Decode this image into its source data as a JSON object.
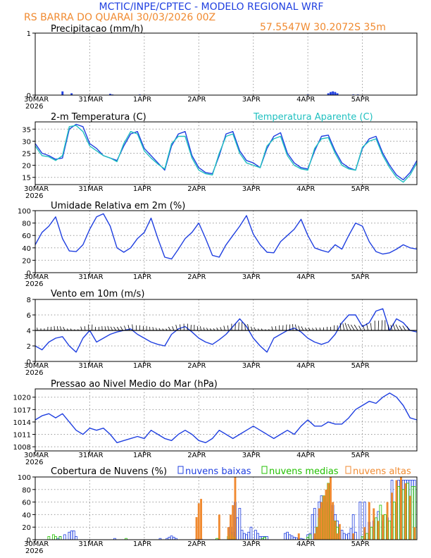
{
  "header": {
    "title": "MCTIC/INPE/CPTEC - MODELO REGIONAL WRF",
    "location": "RS BARRA DO QUARAI    30/03/2026 00Z",
    "coords": "57.5547W 30.2072S 35m"
  },
  "colors": {
    "blue": "#1f3fe0",
    "cyan": "#20c0c0",
    "orange": "#f08a30",
    "green": "#22c000",
    "black": "#000000"
  },
  "x_axis": {
    "labels": [
      "30MAR",
      "31MAR",
      "1APR",
      "2APR",
      "3APR",
      "4APR",
      "5APR"
    ],
    "year": "2026"
  },
  "chart_data": [
    {
      "id": "precip",
      "type": "bar",
      "title": "Precipitacao (mm/h)",
      "ylim": [
        0,
        1
      ],
      "yticks": [
        0,
        1
      ],
      "x_unit": "hours since 30/03/2026 00Z",
      "xlim": [
        0,
        168
      ],
      "series": [
        {
          "name": "Precipitacao",
          "color": "blue",
          "x": [
            12,
            16,
            33,
            34,
            46,
            120,
            129,
            130,
            131,
            132,
            133,
            140,
            142
          ],
          "values": [
            0.06,
            0.03,
            0.02,
            0.01,
            0.01,
            0.01,
            0.03,
            0.05,
            0.06,
            0.05,
            0.03,
            0.01,
            0.01
          ]
        }
      ]
    },
    {
      "id": "temp",
      "type": "line",
      "title": "2-m Temperatura (C)",
      "legend": "Temperatura Aparente (C)",
      "ylim": [
        12,
        38
      ],
      "yticks": [
        15,
        20,
        25,
        30,
        35
      ],
      "xlim": [
        0,
        168
      ],
      "series": [
        {
          "name": "Temperatura (C)",
          "color": "blue",
          "x": [
            0,
            3,
            6,
            9,
            12,
            15,
            18,
            21,
            24,
            27,
            30,
            33,
            36,
            39,
            42,
            45,
            48,
            51,
            54,
            57,
            60,
            63,
            66,
            69,
            72,
            75,
            78,
            81,
            84,
            87,
            90,
            93,
            96,
            99,
            102,
            105,
            108,
            111,
            114,
            117,
            120,
            123,
            126,
            129,
            132,
            135,
            138,
            141,
            144,
            147,
            150,
            153,
            156,
            159,
            162,
            165,
            168
          ],
          "values": [
            29,
            25,
            24,
            22.5,
            23,
            35,
            37,
            36,
            29,
            27,
            24,
            23,
            22,
            28,
            33,
            34,
            27,
            24,
            21,
            18,
            28,
            33,
            34,
            24,
            19,
            17,
            16.5,
            24,
            33,
            34,
            26,
            22,
            21,
            19,
            27,
            32,
            33.5,
            25,
            21,
            19,
            18.5,
            26,
            32,
            32.5,
            26,
            21,
            19,
            18,
            27,
            31,
            32,
            25,
            20,
            16,
            14,
            17,
            22
          ]
        },
        {
          "name": "Temperatura Aparente (C)",
          "color": "cyan",
          "x": [
            0,
            3,
            6,
            9,
            12,
            15,
            18,
            21,
            24,
            27,
            30,
            33,
            36,
            39,
            42,
            45,
            48,
            51,
            54,
            57,
            60,
            63,
            66,
            69,
            72,
            75,
            78,
            81,
            84,
            87,
            90,
            93,
            96,
            99,
            102,
            105,
            108,
            111,
            114,
            117,
            120,
            123,
            126,
            129,
            132,
            135,
            138,
            141,
            144,
            147,
            150,
            153,
            156,
            159,
            162,
            165,
            168
          ],
          "values": [
            28,
            24,
            23.5,
            22,
            24,
            36,
            36.5,
            34,
            28,
            26,
            24,
            23,
            21.5,
            29,
            34,
            33,
            26,
            23,
            20.5,
            18.5,
            29,
            32,
            32,
            23,
            18,
            16.5,
            16,
            25,
            32,
            33,
            25,
            21,
            20,
            19,
            28,
            31,
            32,
            24,
            20,
            18.5,
            18,
            27,
            31,
            31.5,
            25,
            20,
            18.5,
            18,
            27.5,
            30,
            31,
            24,
            19,
            15,
            13,
            16,
            21
          ]
        }
      ]
    },
    {
      "id": "rh",
      "type": "line",
      "title": "Umidade Relativa em 2m (%)",
      "ylim": [
        0,
        100
      ],
      "yticks": [
        0,
        20,
        40,
        60,
        80,
        100
      ],
      "xlim": [
        0,
        168
      ],
      "series": [
        {
          "name": "Umidade Relativa",
          "color": "blue",
          "x": [
            0,
            3,
            6,
            9,
            12,
            15,
            18,
            21,
            24,
            27,
            30,
            33,
            36,
            39,
            42,
            45,
            48,
            51,
            54,
            57,
            60,
            63,
            66,
            69,
            72,
            75,
            78,
            81,
            84,
            87,
            90,
            93,
            96,
            99,
            102,
            105,
            108,
            111,
            114,
            117,
            120,
            123,
            126,
            129,
            132,
            135,
            138,
            141,
            144,
            147,
            150,
            153,
            156,
            159,
            162,
            165,
            168
          ],
          "values": [
            45,
            65,
            75,
            90,
            55,
            35,
            34,
            45,
            70,
            90,
            95,
            75,
            40,
            33,
            40,
            55,
            65,
            88,
            55,
            25,
            22,
            38,
            55,
            65,
            80,
            55,
            28,
            25,
            45,
            60,
            75,
            92,
            62,
            45,
            33,
            32,
            50,
            60,
            70,
            86,
            60,
            40,
            36,
            33,
            45,
            38,
            60,
            80,
            75,
            50,
            34,
            30,
            32,
            38,
            45,
            40,
            38
          ]
        }
      ]
    },
    {
      "id": "wind",
      "type": "line",
      "title": "Vento em 10m (m/s)",
      "ylim": [
        0,
        8
      ],
      "yticks": [
        0,
        2,
        4,
        6,
        8
      ],
      "xlim": [
        0,
        168
      ],
      "series": [
        {
          "name": "Vento",
          "color": "blue",
          "x": [
            0,
            3,
            6,
            9,
            12,
            15,
            18,
            21,
            24,
            27,
            30,
            33,
            36,
            39,
            42,
            45,
            48,
            51,
            54,
            57,
            60,
            63,
            66,
            69,
            72,
            75,
            78,
            81,
            84,
            87,
            90,
            93,
            96,
            99,
            102,
            105,
            108,
            111,
            114,
            117,
            120,
            123,
            126,
            129,
            132,
            135,
            138,
            141,
            144,
            147,
            150,
            153,
            156,
            159,
            162,
            165,
            168
          ],
          "values": [
            2,
            1.5,
            2.5,
            3,
            3.2,
            2,
            1.2,
            3,
            4,
            2.5,
            3,
            3.5,
            3.8,
            4,
            4.2,
            3.5,
            3,
            2.5,
            2.2,
            2,
            3.5,
            4.2,
            4.5,
            3.8,
            3,
            2.5,
            2.2,
            2.8,
            3.5,
            4.5,
            5.5,
            4.5,
            3,
            2,
            1.2,
            3,
            3.5,
            4,
            4.3,
            3.8,
            3,
            2.5,
            2.2,
            2.5,
            3.5,
            5,
            6,
            6,
            4.5,
            5,
            6.5,
            6.8,
            4,
            5.5,
            5,
            4,
            3.8
          ]
        }
      ]
    },
    {
      "id": "pres",
      "type": "line",
      "title": "Pressao ao Nivel Medio do Mar (hPa)",
      "ylim": [
        1007,
        1022
      ],
      "yticks": [
        1008,
        1011,
        1014,
        1017,
        1020
      ],
      "xlim": [
        0,
        168
      ],
      "series": [
        {
          "name": "Pressao",
          "color": "blue",
          "x": [
            0,
            3,
            6,
            9,
            12,
            15,
            18,
            21,
            24,
            27,
            30,
            33,
            36,
            39,
            42,
            45,
            48,
            51,
            54,
            57,
            60,
            63,
            66,
            69,
            72,
            75,
            78,
            81,
            84,
            87,
            90,
            93,
            96,
            99,
            102,
            105,
            108,
            111,
            114,
            117,
            120,
            123,
            126,
            129,
            132,
            135,
            138,
            141,
            144,
            147,
            150,
            153,
            156,
            159,
            162,
            165,
            168
          ],
          "values": [
            1014.5,
            1015.5,
            1016,
            1015,
            1016,
            1014,
            1012,
            1011,
            1012.5,
            1012,
            1012.5,
            1011,
            1009,
            1009.5,
            1010,
            1010.5,
            1010,
            1012,
            1011,
            1010,
            1009.5,
            1011,
            1012,
            1011,
            1009.5,
            1009,
            1010,
            1012,
            1011,
            1010,
            1011,
            1012,
            1013,
            1012,
            1011,
            1010,
            1011,
            1012,
            1011,
            1013,
            1014.5,
            1013,
            1013,
            1014,
            1013.5,
            1013.5,
            1015,
            1017,
            1018,
            1019,
            1018.5,
            1020,
            1021,
            1020,
            1018,
            1015,
            1014.5
          ]
        }
      ]
    },
    {
      "id": "cloud",
      "type": "bar",
      "title": "Cobertura de Nuvens (%)",
      "ylim": [
        0,
        100
      ],
      "yticks": [
        0,
        20,
        40,
        60,
        80,
        100
      ],
      "xlim": [
        0,
        168
      ],
      "series": [
        {
          "name": "nuvens baixas",
          "color": "blue",
          "style": "outline",
          "x": [
            10,
            11,
            13,
            15,
            16,
            17,
            18,
            35,
            55,
            58,
            59,
            60,
            61,
            62,
            71,
            73,
            86,
            87,
            88,
            89,
            90,
            91,
            92,
            93,
            94,
            95,
            97,
            98,
            99,
            100,
            101,
            102,
            110,
            111,
            112,
            113,
            114,
            115,
            117,
            118,
            120,
            121,
            122,
            123,
            124,
            125,
            126,
            127,
            128,
            129,
            130,
            131,
            132,
            133,
            135,
            136,
            137,
            138,
            139,
            140,
            141,
            143,
            145,
            147,
            149,
            151,
            153,
            155,
            157,
            159,
            160,
            161,
            162,
            163,
            164,
            165,
            166,
            167
          ],
          "values": [
            2,
            5,
            8,
            12,
            14,
            14,
            5,
            2,
            2,
            2,
            4,
            6,
            4,
            2,
            1,
            1,
            20,
            12,
            60,
            35,
            50,
            15,
            10,
            8,
            12,
            20,
            15,
            10,
            5,
            5,
            5,
            5,
            10,
            12,
            8,
            6,
            4,
            3,
            2,
            1,
            8,
            10,
            40,
            50,
            15,
            60,
            70,
            45,
            60,
            50,
            40,
            55,
            40,
            30,
            15,
            10,
            8,
            10,
            18,
            40,
            12,
            60,
            60,
            28,
            30,
            45,
            30,
            35,
            95,
            60,
            95,
            95,
            95,
            95,
            95,
            95,
            95,
            95
          ]
        },
        {
          "name": "nuvens medias",
          "color": "green",
          "style": "outline",
          "x": [
            6,
            8,
            9,
            11,
            40,
            80,
            85,
            86,
            87,
            100,
            101,
            120,
            121,
            124,
            125,
            126,
            127,
            128,
            129,
            130,
            131,
            132,
            133,
            144,
            146,
            148,
            150,
            152,
            154,
            156,
            158,
            160,
            162,
            164,
            166,
            167
          ],
          "values": [
            5,
            8,
            5,
            5,
            2,
            2,
            5,
            8,
            4,
            2,
            4,
            4,
            8,
            20,
            35,
            50,
            70,
            40,
            90,
            45,
            30,
            30,
            20,
            5,
            10,
            20,
            35,
            55,
            40,
            30,
            60,
            85,
            80,
            90,
            85,
            85
          ]
        },
        {
          "name": "nuvens altas",
          "color": "orange",
          "style": "fill",
          "x": [
            71,
            72,
            73,
            81,
            85,
            86,
            87,
            88,
            116,
            123,
            124,
            125,
            126,
            127,
            128,
            129,
            130,
            131,
            132,
            133,
            134,
            140,
            145,
            147,
            149,
            151,
            153,
            155,
            157,
            159,
            161,
            163,
            165,
            167
          ],
          "values": [
            36,
            58,
            65,
            40,
            20,
            40,
            55,
            100,
            10,
            10,
            20,
            50,
            60,
            70,
            80,
            90,
            100,
            60,
            30,
            10,
            25,
            10,
            20,
            60,
            50,
            30,
            40,
            60,
            75,
            95,
            100,
            90,
            70,
            20
          ]
        }
      ],
      "legend_labels": [
        "nuvens baixas",
        "nuvens medias",
        "nuvens altas"
      ]
    }
  ]
}
